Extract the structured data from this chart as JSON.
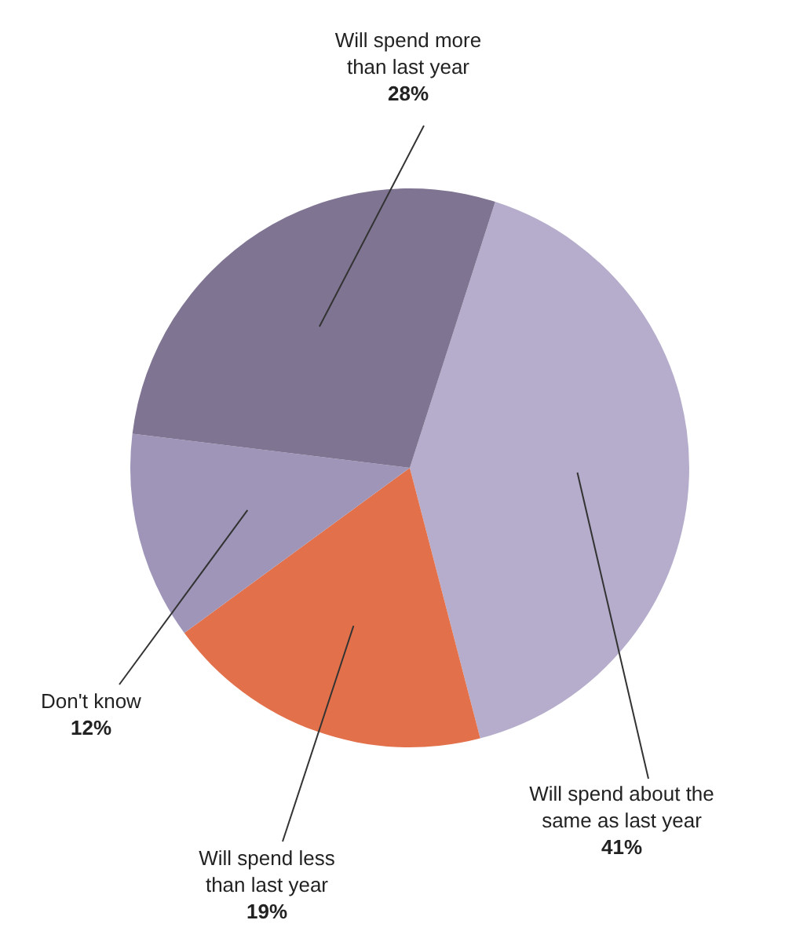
{
  "chart_data": {
    "type": "pie",
    "categories": [
      "Will spend about the\nsame as last year",
      "Will spend less\nthan last year",
      "Don't know",
      "Will spend more\nthan last year"
    ],
    "values": [
      41,
      19,
      12,
      28
    ],
    "colors": [
      "#b5adcb",
      "#e2714b",
      "#9e95b8",
      "#7f7492"
    ],
    "value_labels": [
      "41%",
      "19%",
      "12%",
      "28%"
    ]
  }
}
